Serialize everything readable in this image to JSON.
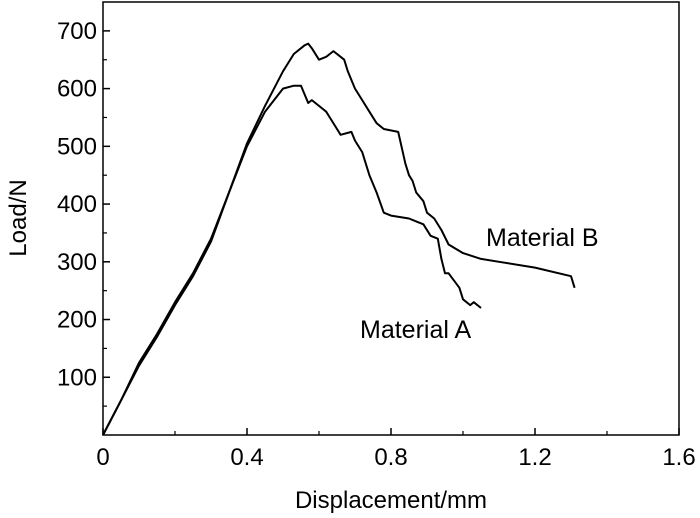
{
  "chart_data": {
    "type": "line",
    "xlabel": "Displacement/mm",
    "ylabel": "Load/N",
    "xlim": [
      0,
      1.6
    ],
    "ylim": [
      0,
      750
    ],
    "x_ticks": [
      "0",
      "0.4",
      "0.8",
      "1.2",
      "1.6"
    ],
    "y_ticks": [
      "100",
      "200",
      "300",
      "400",
      "500",
      "600",
      "700"
    ],
    "grid": false,
    "legend": "none",
    "annotations": {
      "material_a": "Material A",
      "material_b": "Material B"
    },
    "series": [
      {
        "name": "Material A",
        "x": [
          0.0,
          0.05,
          0.1,
          0.15,
          0.2,
          0.25,
          0.3,
          0.35,
          0.4,
          0.45,
          0.5,
          0.53,
          0.55,
          0.56,
          0.57,
          0.58,
          0.6,
          0.62,
          0.63,
          0.65,
          0.66,
          0.69,
          0.7,
          0.72,
          0.74,
          0.76,
          0.78,
          0.8,
          0.85,
          0.87,
          0.89,
          0.91,
          0.93,
          0.94,
          0.95,
          0.96,
          0.99,
          1.0,
          1.02,
          1.03,
          1.05
        ],
        "values": [
          0,
          60,
          125,
          175,
          230,
          280,
          340,
          420,
          500,
          560,
          600,
          605,
          605,
          590,
          575,
          580,
          570,
          560,
          550,
          530,
          520,
          525,
          510,
          490,
          450,
          420,
          385,
          380,
          375,
          370,
          365,
          345,
          340,
          305,
          280,
          280,
          255,
          235,
          225,
          230,
          220
        ],
        "color": "#000000"
      },
      {
        "name": "Material B",
        "x": [
          0.0,
          0.05,
          0.1,
          0.15,
          0.2,
          0.25,
          0.3,
          0.35,
          0.4,
          0.45,
          0.5,
          0.53,
          0.56,
          0.57,
          0.58,
          0.6,
          0.62,
          0.63,
          0.64,
          0.66,
          0.67,
          0.68,
          0.7,
          0.72,
          0.74,
          0.76,
          0.78,
          0.82,
          0.84,
          0.85,
          0.86,
          0.87,
          0.89,
          0.9,
          0.92,
          0.94,
          0.96,
          1.0,
          1.05,
          1.1,
          1.2,
          1.3,
          1.31
        ],
        "values": [
          0,
          60,
          120,
          170,
          225,
          275,
          335,
          420,
          505,
          570,
          630,
          660,
          675,
          678,
          670,
          650,
          655,
          660,
          665,
          655,
          650,
          630,
          600,
          580,
          560,
          540,
          530,
          525,
          470,
          450,
          440,
          420,
          405,
          385,
          375,
          355,
          330,
          315,
          305,
          300,
          290,
          275,
          255
        ],
        "color": "#000000"
      }
    ]
  }
}
